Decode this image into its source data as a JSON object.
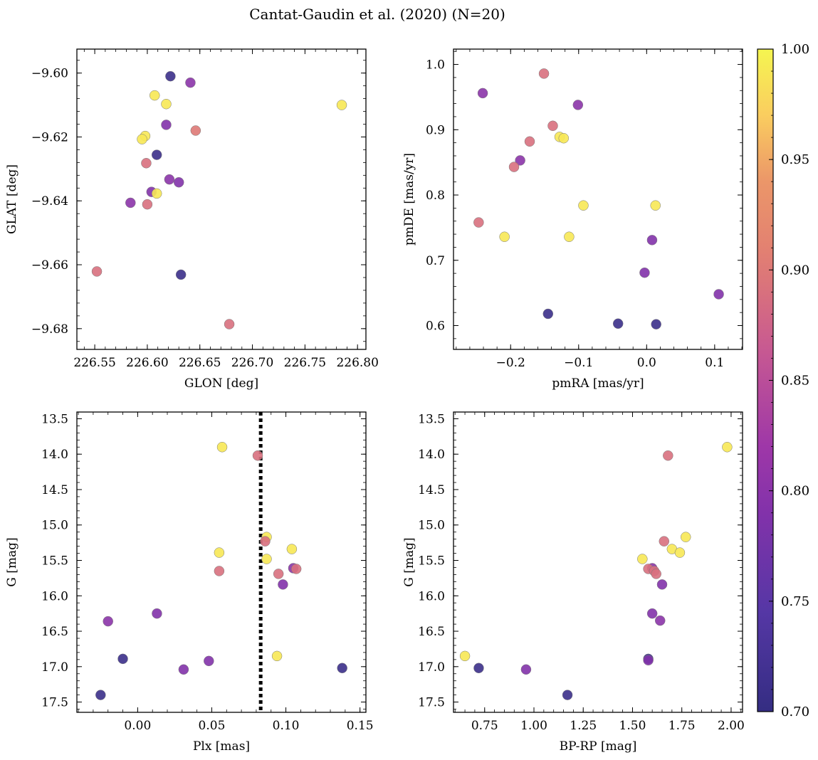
{
  "figure": {
    "title": "Cantat-Gaudin et al. (2020) (N=20)"
  },
  "colorbar": {
    "colormap": "plasma",
    "range": [
      0.7,
      1.0
    ],
    "ticks": [
      0.7,
      0.75,
      0.8,
      0.85,
      0.9,
      0.95,
      1.0
    ],
    "tick_labels": [
      "0.70",
      "0.75",
      "0.80",
      "0.85",
      "0.90",
      "0.95",
      "1.00"
    ]
  },
  "chart_data": [
    {
      "type": "scatter",
      "name": "position",
      "title": "",
      "xlabel": "GLON [deg]",
      "ylabel": "GLAT [deg]",
      "xlim": [
        226.533,
        226.808
      ],
      "ylim": [
        -9.6865,
        -9.5925
      ],
      "xticks": [
        226.55,
        226.6,
        226.65,
        226.7,
        226.75,
        226.8
      ],
      "xtick_labels": [
        "226.55",
        "226.60",
        "226.65",
        "226.70",
        "226.75",
        "226.80"
      ],
      "yticks": [
        -9.6,
        -9.62,
        -9.64,
        -9.66,
        -9.68
      ],
      "ytick_labels": [
        "−9.60",
        "−9.62",
        "−9.64",
        "−9.66",
        "−9.68"
      ],
      "points": [
        {
          "x": 226.622,
          "y": -9.601,
          "c": 0.71
        },
        {
          "x": 226.641,
          "y": -9.603,
          "c": 0.8
        },
        {
          "x": 226.607,
          "y": -9.607,
          "c": 0.99
        },
        {
          "x": 226.618,
          "y": -9.6097,
          "c": 0.99
        },
        {
          "x": 226.785,
          "y": -9.61,
          "c": 0.99
        },
        {
          "x": 226.618,
          "y": -9.6162,
          "c": 0.79
        },
        {
          "x": 226.646,
          "y": -9.618,
          "c": 0.9
        },
        {
          "x": 226.598,
          "y": -9.6197,
          "c": 0.99
        },
        {
          "x": 226.595,
          "y": -9.6207,
          "c": 0.99
        },
        {
          "x": 226.609,
          "y": -9.6256,
          "c": 0.71
        },
        {
          "x": 226.599,
          "y": -9.6282,
          "c": 0.89
        },
        {
          "x": 226.621,
          "y": -9.6333,
          "c": 0.8
        },
        {
          "x": 226.63,
          "y": -9.6342,
          "c": 0.79
        },
        {
          "x": 226.604,
          "y": -9.6372,
          "c": 0.79
        },
        {
          "x": 226.609,
          "y": -9.6377,
          "c": 0.99
        },
        {
          "x": 226.584,
          "y": -9.6406,
          "c": 0.8
        },
        {
          "x": 226.6,
          "y": -9.6411,
          "c": 0.89
        },
        {
          "x": 226.552,
          "y": -9.6621,
          "c": 0.89
        },
        {
          "x": 226.632,
          "y": -9.6631,
          "c": 0.71
        },
        {
          "x": 226.678,
          "y": -9.6786,
          "c": 0.89
        }
      ]
    },
    {
      "type": "scatter",
      "name": "proper-motion",
      "title": "",
      "xlabel": "pmRA [mas/yr]",
      "ylabel": "pmDE [mas/yr]",
      "xlim": [
        -0.284,
        0.141
      ],
      "ylim": [
        0.5635,
        1.0235
      ],
      "xticks": [
        -0.2,
        -0.1,
        0.0,
        0.1
      ],
      "xtick_labels": [
        "−0.2",
        "−0.1",
        "0.0",
        "0.1"
      ],
      "yticks": [
        0.6,
        0.7,
        0.8,
        0.9,
        1.0
      ],
      "ytick_labels": [
        "0.6",
        "0.7",
        "0.8",
        "0.9",
        "1.0"
      ],
      "points": [
        {
          "x": -0.151,
          "y": 0.986,
          "c": 0.89
        },
        {
          "x": -0.241,
          "y": 0.956,
          "c": 0.8
        },
        {
          "x": -0.101,
          "y": 0.938,
          "c": 0.8
        },
        {
          "x": -0.138,
          "y": 0.906,
          "c": 0.89
        },
        {
          "x": -0.128,
          "y": 0.889,
          "c": 0.99
        },
        {
          "x": -0.122,
          "y": 0.887,
          "c": 0.99
        },
        {
          "x": -0.172,
          "y": 0.882,
          "c": 0.89
        },
        {
          "x": -0.186,
          "y": 0.853,
          "c": 0.8
        },
        {
          "x": -0.195,
          "y": 0.843,
          "c": 0.89
        },
        {
          "x": -0.093,
          "y": 0.784,
          "c": 0.99
        },
        {
          "x": 0.013,
          "y": 0.784,
          "c": 0.99
        },
        {
          "x": -0.247,
          "y": 0.758,
          "c": 0.89
        },
        {
          "x": -0.209,
          "y": 0.736,
          "c": 0.99
        },
        {
          "x": -0.114,
          "y": 0.736,
          "c": 0.99
        },
        {
          "x": 0.008,
          "y": 0.731,
          "c": 0.79
        },
        {
          "x": -0.003,
          "y": 0.681,
          "c": 0.79
        },
        {
          "x": 0.106,
          "y": 0.648,
          "c": 0.79
        },
        {
          "x": -0.145,
          "y": 0.618,
          "c": 0.71
        },
        {
          "x": -0.042,
          "y": 0.603,
          "c": 0.71
        },
        {
          "x": 0.014,
          "y": 0.602,
          "c": 0.71
        }
      ]
    },
    {
      "type": "scatter",
      "name": "parallax-magnitude",
      "title": "",
      "xlabel": "Plx [mas]",
      "ylabel": "G [mag]",
      "xlim": [
        -0.041,
        0.154
      ],
      "ylim": [
        17.645,
        13.405
      ],
      "y_inverted": true,
      "xticks": [
        0.0,
        0.05,
        0.1,
        0.15
      ],
      "xtick_labels": [
        "0.00",
        "0.05",
        "0.10",
        "0.15"
      ],
      "yticks": [
        13.5,
        14.0,
        14.5,
        15.0,
        15.5,
        16.0,
        16.5,
        17.0,
        17.5
      ],
      "ytick_labels": [
        "13.5",
        "14.0",
        "14.5",
        "15.0",
        "15.5",
        "16.0",
        "16.5",
        "17.0",
        "17.5"
      ],
      "vline": {
        "x": 0.083,
        "style": "dotted"
      },
      "points": [
        {
          "x": 0.057,
          "y": 13.9,
          "c": 0.99
        },
        {
          "x": 0.081,
          "y": 14.02,
          "c": 0.89
        },
        {
          "x": 0.087,
          "y": 15.17,
          "c": 0.99
        },
        {
          "x": 0.086,
          "y": 15.23,
          "c": 0.89
        },
        {
          "x": 0.104,
          "y": 15.34,
          "c": 0.99
        },
        {
          "x": 0.055,
          "y": 15.39,
          "c": 0.99
        },
        {
          "x": 0.087,
          "y": 15.48,
          "c": 0.99
        },
        {
          "x": 0.105,
          "y": 15.61,
          "c": 0.8
        },
        {
          "x": 0.107,
          "y": 15.62,
          "c": 0.89
        },
        {
          "x": 0.055,
          "y": 15.65,
          "c": 0.89
        },
        {
          "x": 0.095,
          "y": 15.69,
          "c": 0.89
        },
        {
          "x": 0.098,
          "y": 15.84,
          "c": 0.79
        },
        {
          "x": 0.013,
          "y": 16.25,
          "c": 0.79
        },
        {
          "x": -0.02,
          "y": 16.36,
          "c": 0.8
        },
        {
          "x": 0.094,
          "y": 16.85,
          "c": 0.99
        },
        {
          "x": -0.01,
          "y": 16.89,
          "c": 0.71
        },
        {
          "x": 0.048,
          "y": 16.92,
          "c": 0.79
        },
        {
          "x": 0.138,
          "y": 17.02,
          "c": 0.71
        },
        {
          "x": 0.031,
          "y": 17.04,
          "c": 0.79
        },
        {
          "x": -0.025,
          "y": 17.4,
          "c": 0.71
        }
      ]
    },
    {
      "type": "scatter",
      "name": "color-magnitude",
      "title": "",
      "xlabel": "BP-RP [mag]",
      "ylabel": "G [mag]",
      "xlim": [
        0.592,
        2.058
      ],
      "ylim": [
        17.645,
        13.405
      ],
      "y_inverted": true,
      "xticks": [
        0.75,
        1.0,
        1.25,
        1.5,
        1.75,
        2.0
      ],
      "xtick_labels": [
        "0.75",
        "1.00",
        "1.25",
        "1.50",
        "1.75",
        "2.00"
      ],
      "yticks": [
        13.5,
        14.0,
        14.5,
        15.0,
        15.5,
        16.0,
        16.5,
        17.0,
        17.5
      ],
      "ytick_labels": [
        "13.5",
        "14.0",
        "14.5",
        "15.0",
        "15.5",
        "16.0",
        "16.5",
        "17.0",
        "17.5"
      ],
      "points": [
        {
          "x": 1.98,
          "y": 13.9,
          "c": 0.99
        },
        {
          "x": 1.68,
          "y": 14.02,
          "c": 0.89
        },
        {
          "x": 1.77,
          "y": 15.17,
          "c": 0.99
        },
        {
          "x": 1.66,
          "y": 15.23,
          "c": 0.89
        },
        {
          "x": 1.7,
          "y": 15.34,
          "c": 0.99
        },
        {
          "x": 1.74,
          "y": 15.39,
          "c": 0.99
        },
        {
          "x": 1.55,
          "y": 15.48,
          "c": 0.99
        },
        {
          "x": 1.6,
          "y": 15.61,
          "c": 0.8
        },
        {
          "x": 1.58,
          "y": 15.62,
          "c": 0.89
        },
        {
          "x": 1.61,
          "y": 15.65,
          "c": 0.89
        },
        {
          "x": 1.62,
          "y": 15.69,
          "c": 0.89
        },
        {
          "x": 1.65,
          "y": 15.84,
          "c": 0.79
        },
        {
          "x": 1.6,
          "y": 16.25,
          "c": 0.79
        },
        {
          "x": 1.64,
          "y": 16.35,
          "c": 0.8
        },
        {
          "x": 0.65,
          "y": 16.85,
          "c": 0.99
        },
        {
          "x": 1.58,
          "y": 16.89,
          "c": 0.71
        },
        {
          "x": 1.58,
          "y": 16.91,
          "c": 0.79
        },
        {
          "x": 0.72,
          "y": 17.02,
          "c": 0.71
        },
        {
          "x": 0.96,
          "y": 17.04,
          "c": 0.79
        },
        {
          "x": 1.17,
          "y": 17.4,
          "c": 0.71
        }
      ]
    }
  ]
}
